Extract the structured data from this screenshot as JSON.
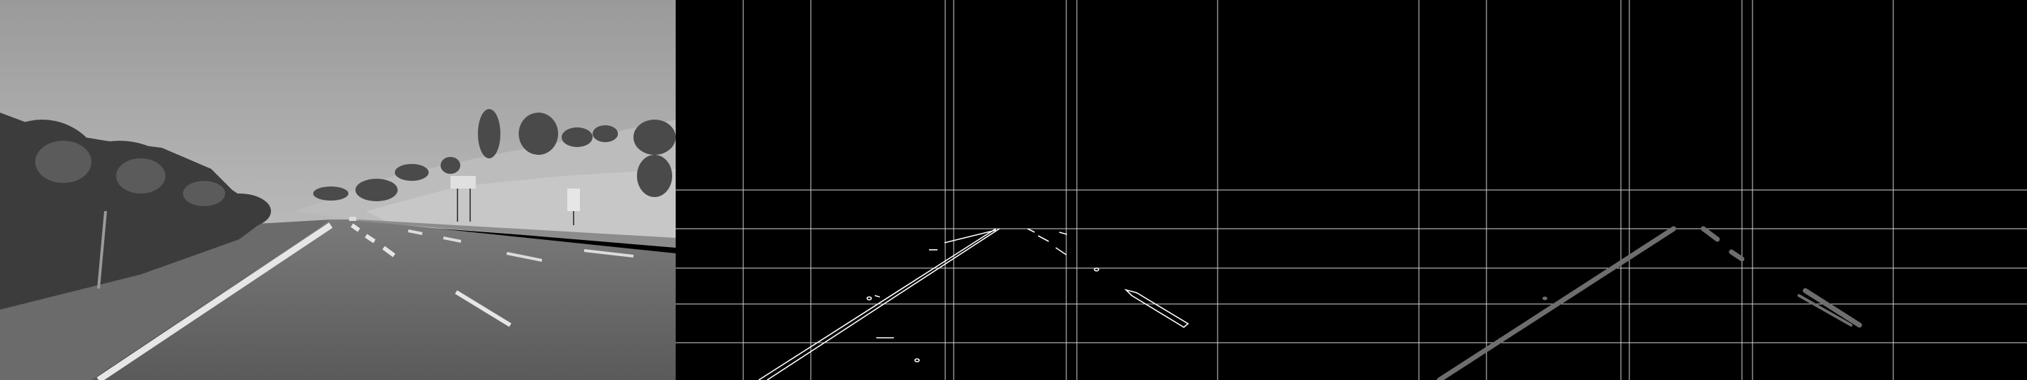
{
  "panels": [
    {
      "id": "grayscale-road-photo"
    },
    {
      "id": "edge-detection-with-grid"
    },
    {
      "id": "hough-lines-with-grid"
    }
  ],
  "colors": {
    "sky": "#a6a6a6",
    "road": "#5f5f5f",
    "vegetation": "#3c3c3c",
    "grid": "#d8d8d8",
    "edges": "#ffffff",
    "hough_lines": "#6e6e6e"
  }
}
